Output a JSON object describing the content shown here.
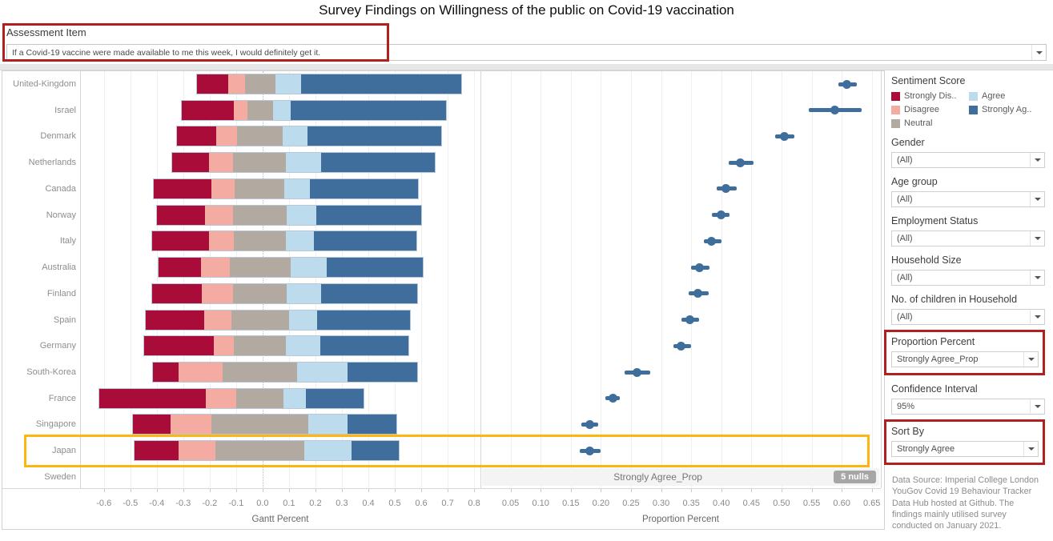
{
  "title": "Survey Findings on Willingness of the public on Covid-19 vaccination",
  "assessment": {
    "label": "Assessment Item",
    "value": "If a Covid-19 vaccine were made available to me this week, I would definitely get it."
  },
  "legend": {
    "title": "Sentiment Score",
    "items": [
      {
        "label": "Strongly Dis..",
        "color": "#a90c38",
        "column": 1
      },
      {
        "label": "Disagree",
        "color": "#f4aca2",
        "column": 1
      },
      {
        "label": "Neutral",
        "color": "#b2a9a1",
        "column": 1
      },
      {
        "label": "Agree",
        "color": "#bcdcee",
        "column": 2
      },
      {
        "label": "Strongly Ag..",
        "color": "#3f6e9c",
        "column": 2
      }
    ]
  },
  "filters": [
    {
      "label": "Gender",
      "value": "(All)",
      "highlighted": false
    },
    {
      "label": "Age group",
      "value": "(All)",
      "highlighted": false
    },
    {
      "label": "Employment Status",
      "value": "(All)",
      "highlighted": false
    },
    {
      "label": "Household Size",
      "value": "(All)",
      "highlighted": false
    },
    {
      "label": "No. of children in Household",
      "value": "(All)",
      "highlighted": false
    },
    {
      "label": "Proportion Percent",
      "value": "Strongly Agree_Prop",
      "highlighted": true
    },
    {
      "label": "Confidence Interval",
      "value": "95%",
      "highlighted": false
    },
    {
      "label": "Sort By",
      "value": "Strongly Agree",
      "highlighted": true
    }
  ],
  "annotations": {
    "null_row_label": "Strongly Agree_Prop",
    "nulls_badge": "5 nulls",
    "highlighted_country": "Japan",
    "highlight_color": "#fdb512",
    "callout_color": "#b02020"
  },
  "data_source": "Data Source: Imperial College London YouGov Covid 19 Behaviour Tracker Data Hub hosted at Github. The findings mainly utilised survey conducted on January 2021.",
  "chart_data": [
    {
      "type": "bar",
      "variant": "diverging-stacked-likert",
      "xlabel": "Gantt Percent",
      "xlim": [
        -0.69,
        0.824
      ],
      "ticks": [
        -0.6,
        -0.5,
        -0.4,
        -0.3,
        -0.2,
        -0.1,
        0.0,
        0.1,
        0.2,
        0.3,
        0.4,
        0.5,
        0.6,
        0.7,
        0.8
      ],
      "tick_decimals": 1,
      "grid": true,
      "series_order": [
        "Strongly Disagree",
        "Disagree",
        "Neutral",
        "Agree",
        "Strongly Agree"
      ],
      "series_colors": [
        "#a90c38",
        "#f4aca2",
        "#b2a9a1",
        "#bcdcee",
        "#3f6e9c"
      ],
      "rows": [
        {
          "country": "United-Kingdom",
          "bounds": [
            -0.25,
            -0.132,
            -0.068,
            0.048,
            0.145,
            0.755
          ]
        },
        {
          "country": "Israel",
          "bounds": [
            -0.309,
            -0.11,
            -0.06,
            0.038,
            0.107,
            0.698
          ]
        },
        {
          "country": "Denmark",
          "bounds": [
            -0.327,
            -0.176,
            -0.097,
            0.077,
            0.17,
            0.678
          ]
        },
        {
          "country": "Netherlands",
          "bounds": [
            -0.345,
            -0.204,
            -0.113,
            0.087,
            0.223,
            0.655
          ]
        },
        {
          "country": "Canada",
          "bounds": [
            -0.413,
            -0.196,
            -0.107,
            0.082,
            0.18,
            0.59
          ]
        },
        {
          "country": "Norway",
          "bounds": [
            -0.401,
            -0.221,
            -0.113,
            0.092,
            0.203,
            0.602
          ]
        },
        {
          "country": "Italy",
          "bounds": [
            -0.42,
            -0.203,
            -0.11,
            0.089,
            0.196,
            0.584
          ]
        },
        {
          "country": "Australia",
          "bounds": [
            -0.395,
            -0.236,
            -0.125,
            0.105,
            0.243,
            0.609
          ]
        },
        {
          "country": "Finland",
          "bounds": [
            -0.42,
            -0.231,
            -0.113,
            0.092,
            0.223,
            0.587
          ]
        },
        {
          "country": "Spain",
          "bounds": [
            -0.445,
            -0.221,
            -0.12,
            0.102,
            0.206,
            0.56
          ]
        },
        {
          "country": "Germany",
          "bounds": [
            -0.45,
            -0.186,
            -0.11,
            0.087,
            0.218,
            0.554
          ]
        },
        {
          "country": "South-Korea",
          "bounds": [
            -0.416,
            -0.319,
            -0.151,
            0.132,
            0.324,
            0.587
          ]
        },
        {
          "country": "France",
          "bounds": [
            -0.62,
            -0.214,
            -0.1,
            0.079,
            0.166,
            0.385
          ]
        },
        {
          "country": "Singapore",
          "bounds": [
            -0.494,
            -0.349,
            -0.196,
            0.173,
            0.324,
            0.509
          ]
        },
        {
          "country": "Japan",
          "bounds": [
            -0.486,
            -0.319,
            -0.178,
            0.16,
            0.337,
            0.518
          ]
        },
        {
          "country": "Sweden",
          "bounds": null
        }
      ]
    },
    {
      "type": "scatter",
      "variant": "dot-with-confidence-interval",
      "xlabel": "Proportion Percent",
      "measure": "Strongly Agree_Prop",
      "confidence_level": "95%",
      "xlim": [
        0.0,
        0.665
      ],
      "ticks": [
        0.05,
        0.1,
        0.15,
        0.2,
        0.25,
        0.3,
        0.35,
        0.4,
        0.45,
        0.5,
        0.55,
        0.6,
        0.65
      ],
      "tick_decimals": 2,
      "grid": true,
      "marker_color": "#3f6e9c",
      "rows": [
        {
          "country": "United-Kingdom",
          "value": 0.609,
          "ci": [
            0.594,
            0.625
          ]
        },
        {
          "country": "Israel",
          "value": 0.588,
          "ci": [
            0.545,
            0.633
          ]
        },
        {
          "country": "Denmark",
          "value": 0.505,
          "ci": [
            0.489,
            0.521
          ]
        },
        {
          "country": "Netherlands",
          "value": 0.432,
          "ci": [
            0.412,
            0.453
          ]
        },
        {
          "country": "Canada",
          "value": 0.407,
          "ci": [
            0.393,
            0.426
          ]
        },
        {
          "country": "Norway",
          "value": 0.399,
          "ci": [
            0.384,
            0.413
          ]
        },
        {
          "country": "Italy",
          "value": 0.384,
          "ci": [
            0.371,
            0.4
          ]
        },
        {
          "country": "Australia",
          "value": 0.364,
          "ci": [
            0.35,
            0.381
          ]
        },
        {
          "country": "Finland",
          "value": 0.361,
          "ci": [
            0.346,
            0.379
          ]
        },
        {
          "country": "Spain",
          "value": 0.348,
          "ci": [
            0.334,
            0.363
          ]
        },
        {
          "country": "Germany",
          "value": 0.333,
          "ci": [
            0.32,
            0.35
          ]
        },
        {
          "country": "South-Korea",
          "value": 0.26,
          "ci": [
            0.239,
            0.282
          ]
        },
        {
          "country": "France",
          "value": 0.22,
          "ci": [
            0.208,
            0.232
          ]
        },
        {
          "country": "Singapore",
          "value": 0.181,
          "ci": [
            0.167,
            0.196
          ]
        },
        {
          "country": "Japan",
          "value": 0.181,
          "ci": [
            0.165,
            0.199
          ]
        },
        {
          "country": "Sweden",
          "value": null,
          "ci": null
        }
      ]
    }
  ]
}
